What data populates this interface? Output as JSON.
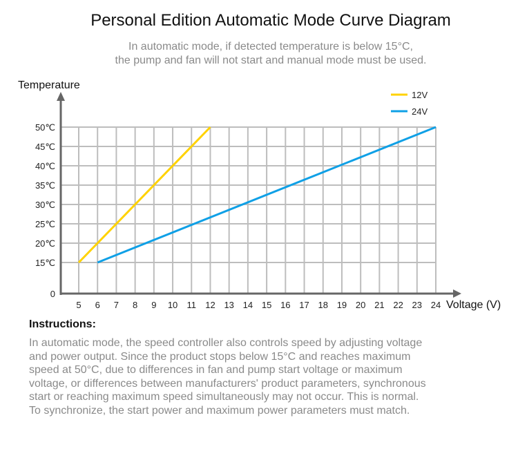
{
  "header": {
    "title": "Personal Edition Automatic Mode Curve Diagram",
    "subtitle_line1": "In automatic mode, if detected temperature is below 15°C,",
    "subtitle_line2": "the pump and fan will not start and manual mode must be used."
  },
  "chart_data": {
    "type": "line",
    "ylabel": "Temperature",
    "xlabel": "Voltage (V)",
    "x_ticks": [
      5,
      6,
      7,
      8,
      9,
      10,
      11,
      12,
      13,
      14,
      15,
      16,
      17,
      18,
      19,
      20,
      21,
      22,
      23,
      24
    ],
    "y_ticks": [
      "0",
      "15℃",
      "20℃",
      "25℃",
      "30℃",
      "35℃",
      "40℃",
      "45℃",
      "50℃"
    ],
    "y_tick_values": [
      0,
      15,
      20,
      25,
      30,
      35,
      40,
      45,
      50
    ],
    "xlim": [
      4,
      24
    ],
    "ylim": [
      0,
      50
    ],
    "grid": true,
    "legend_position": "top-right",
    "series": [
      {
        "name": "12V",
        "color": "#FFD200",
        "x": [
          5,
          12
        ],
        "y": [
          15,
          50
        ]
      },
      {
        "name": "24V",
        "color": "#0FA0E6",
        "x": [
          6,
          24
        ],
        "y": [
          15,
          50
        ]
      }
    ]
  },
  "instructions": {
    "heading": "Instructions:",
    "lines": [
      "In automatic mode, the speed controller also controls speed by adjusting voltage",
      "and power output. Since the product stops below 15°C and reaches maximum",
      "speed at 50°C, due to differences in fan and pump start voltage or maximum",
      "voltage, or differences between manufacturers' product parameters, synchronous",
      "start or reaching maximum speed simultaneously may not occur. This is normal.",
      "To synchronize, the start power and maximum power parameters must match."
    ]
  }
}
